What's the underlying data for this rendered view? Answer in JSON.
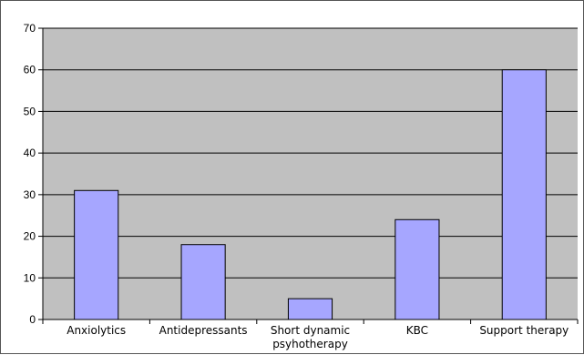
{
  "chart_data": {
    "type": "bar",
    "title": "",
    "xlabel": "",
    "ylabel": "",
    "categories": [
      [
        "Anxiolytics"
      ],
      [
        "Antidepressants"
      ],
      [
        "Short dynamic",
        "psyhotherapy"
      ],
      [
        "KBC"
      ],
      [
        "Support therapy"
      ]
    ],
    "values": [
      31,
      18,
      5,
      24,
      60
    ],
    "ylim": [
      0,
      70
    ],
    "yticks": [
      0,
      10,
      20,
      30,
      40,
      50,
      60,
      70
    ],
    "grid": true,
    "legend": "none",
    "colors": {
      "plot_background": "#c0c0c0",
      "bar_fill": "#a6a6ff",
      "bar_stroke": "#000000",
      "gridline": "#000000"
    }
  }
}
